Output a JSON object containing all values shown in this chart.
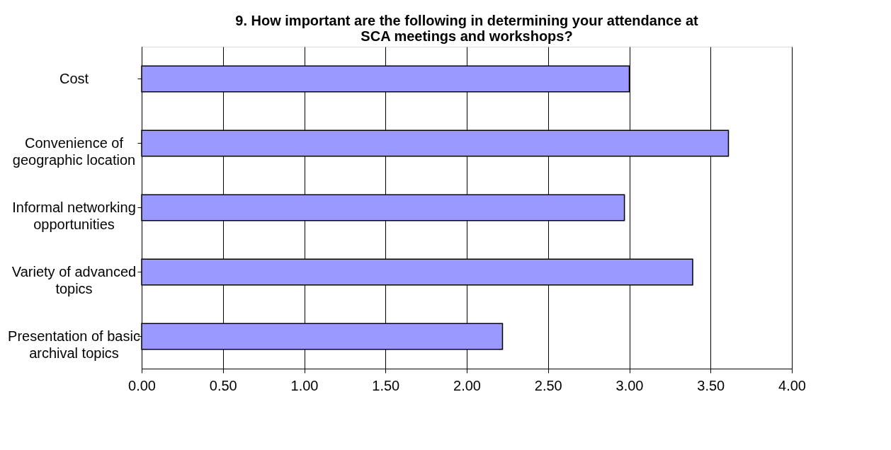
{
  "chart_data": {
    "type": "bar",
    "orientation": "horizontal",
    "title": "9. How important are the following in determining your attendance at SCA meetings and workshops?",
    "categories": [
      "Cost",
      "Convenience of geographic location",
      "Informal networking opportunities",
      "Variety of advanced topics",
      "Presentation of basic archival topics"
    ],
    "values": [
      3.0,
      3.61,
      2.97,
      3.39,
      2.22
    ],
    "color": "#9999ff",
    "xlim": [
      0,
      4
    ],
    "xticks": [
      {
        "value": 0,
        "label": "0.00"
      },
      {
        "value": 0.5,
        "label": "0.50"
      },
      {
        "value": 1,
        "label": "1.00"
      },
      {
        "value": 1.5,
        "label": "1.50"
      },
      {
        "value": 2,
        "label": "2.00"
      },
      {
        "value": 2.5,
        "label": "2.50"
      },
      {
        "value": 3,
        "label": "3.00"
      },
      {
        "value": 3.5,
        "label": "3.50"
      },
      {
        "value": 4,
        "label": "4.00"
      }
    ],
    "grid": "x"
  }
}
